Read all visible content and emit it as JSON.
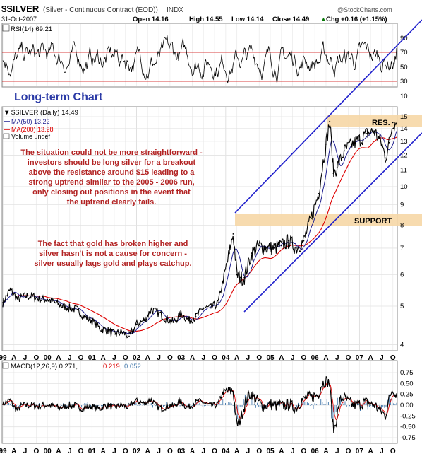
{
  "header": {
    "symbol": "$SILVER",
    "description": "(Silver - Continuous Contract (EOD))",
    "exchange": "INDX",
    "source": "@StockCharts.com",
    "date": "31-Oct-2007",
    "open": "Open 14.16",
    "high": "High 14.55",
    "low": "Low 14.14",
    "close": "Close 14.49",
    "change": "Chg +0.16 (+1.15%)",
    "change_arrow": "▲"
  },
  "rsi_panel": {
    "label": "RSI(14) 69.21",
    "ticks": [
      "90",
      "70",
      "50",
      "30",
      "10"
    ]
  },
  "main_panel": {
    "title_label": "$SILVER (Daily) 14.49",
    "ma50_label": "MA(50) 13.22",
    "ma200_label": "MA(200) 13.28",
    "volume_label": "Volume undef",
    "ticks": [
      "15",
      "14",
      "13",
      "12",
      "11",
      "10",
      "9",
      "8",
      "7",
      "6",
      "5",
      "4"
    ],
    "annotation_title": "Long-term Chart",
    "annotation_1": [
      "The situation could not be more straightforward -",
      "investors should be long silver for a breakout",
      "above the resistance around $15 leading to a",
      "strong uptrend similar to the 2005 - 2006 run,",
      "only closing out positions in the event that",
      "the uptrend clearly fails."
    ],
    "annotation_2": [
      "The fact that gold has broken higher and",
      "silver hasn't is not a cause for concern -",
      "silver usually lags gold and plays catchup."
    ],
    "resistance_label": "RES.",
    "support_label": "SUPPORT"
  },
  "macd_panel": {
    "label_main": "MACD(12,26,9) 0.271,",
    "label_signal": "0.219,",
    "label_hist": "0.052",
    "ticks": [
      "0.75",
      "0.50",
      "0.25",
      "0.00",
      "-0.25",
      "-0.50",
      "-0.75"
    ]
  },
  "x_axis": {
    "labels": [
      "99",
      "A",
      "J",
      "O",
      "00",
      "A",
      "J",
      "O",
      "01",
      "A",
      "J",
      "O",
      "02",
      "A",
      "J",
      "O",
      "03",
      "A",
      "J",
      "O",
      "04",
      "A",
      "J",
      "O",
      "05",
      "A",
      "J",
      "O",
      "06",
      "A",
      "J",
      "O",
      "07",
      "A",
      "J",
      "O"
    ]
  },
  "colors": {
    "price": "#000000",
    "ma50": "#1f1f8f",
    "ma200": "#dd0000",
    "channel": "#2222cc",
    "band": "#f6d7a6",
    "annotation_red": "#b22222",
    "annotation_blue": "#2b3aa6",
    "macd_signal": "#dd0000",
    "macd_hist": "#4d7fb0"
  },
  "chart_data": {
    "type": "line",
    "title": "$SILVER (Silver - Continuous Contract (EOD)) INDX",
    "scale": "log",
    "ylim": [
      4,
      15.5
    ],
    "grid": true,
    "x_range": [
      "1999-01",
      "2007-10"
    ],
    "series": [
      {
        "name": "$SILVER (Daily)",
        "x": [
          "1999-01",
          "1999-03",
          "1999-05",
          "1999-07",
          "1999-09",
          "1999-11",
          "2000-01",
          "2000-03",
          "2000-05",
          "2000-07",
          "2000-09",
          "2000-11",
          "2001-01",
          "2001-03",
          "2001-05",
          "2001-07",
          "2001-09",
          "2001-11",
          "2002-01",
          "2002-03",
          "2002-05",
          "2002-07",
          "2002-09",
          "2002-11",
          "2003-01",
          "2003-03",
          "2003-05",
          "2003-07",
          "2003-09",
          "2003-11",
          "2004-01",
          "2004-02",
          "2004-03",
          "2004-04",
          "2004-05",
          "2004-06",
          "2004-08",
          "2004-10",
          "2004-12",
          "2005-02",
          "2005-04",
          "2005-06",
          "2005-08",
          "2005-10",
          "2005-12",
          "2006-02",
          "2006-04",
          "2006-05",
          "2006-06",
          "2006-07",
          "2006-09",
          "2006-11",
          "2007-01",
          "2007-03",
          "2007-05",
          "2007-07",
          "2007-08",
          "2007-09",
          "2007-10"
        ],
        "values": [
          5.1,
          5.5,
          5.2,
          5.3,
          5.3,
          5.2,
          5.2,
          5.1,
          5.0,
          4.95,
          4.9,
          4.7,
          4.6,
          4.4,
          4.35,
          4.25,
          4.3,
          4.2,
          4.5,
          4.6,
          4.9,
          4.8,
          4.65,
          4.55,
          4.8,
          4.6,
          4.7,
          4.95,
          4.95,
          5.1,
          6.2,
          6.8,
          7.6,
          6.0,
          5.9,
          5.9,
          6.8,
          7.1,
          7.0,
          7.0,
          7.1,
          7.3,
          7.0,
          7.3,
          8.3,
          9.6,
          12.8,
          14.6,
          10.8,
          11.2,
          12.3,
          12.8,
          13.1,
          13.6,
          13.8,
          12.8,
          11.8,
          12.9,
          14.49
        ]
      },
      {
        "name": "MA(50)",
        "last": 13.22
      },
      {
        "name": "MA(200)",
        "last": 13.28
      },
      {
        "name": "RSI(14)",
        "last": 69.21,
        "ylim": [
          10,
          90
        ]
      },
      {
        "name": "MACD(12,26,9)",
        "last": 0.271,
        "signal": 0.219,
        "histogram": 0.052,
        "ylim": [
          -0.75,
          0.75
        ]
      }
    ],
    "levels": [
      {
        "name": "RES.",
        "value": 15
      },
      {
        "name": "SUPPORT",
        "value": 8.3
      }
    ]
  }
}
